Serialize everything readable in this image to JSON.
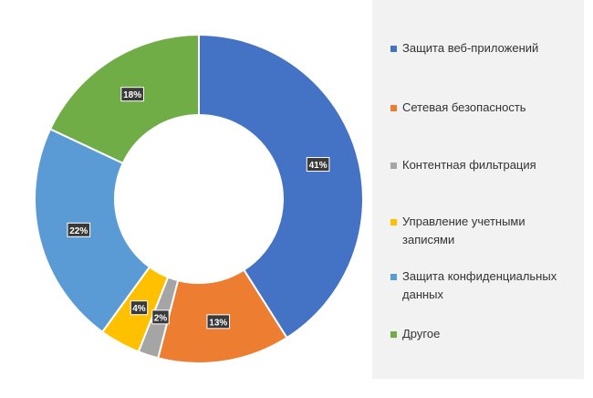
{
  "chart_data": {
    "type": "donut",
    "categories": [
      "Защита веб-приложений",
      "Сетевая безопасность",
      "Контентная фильтрация",
      "Управление учетными записями",
      "Защита конфиденциальных данных",
      "Другое"
    ],
    "values": [
      41,
      13,
      2,
      4,
      22,
      18
    ],
    "data_labels": [
      "41%",
      "13%",
      "2%",
      "4%",
      "22%",
      "18%"
    ],
    "unit": "%",
    "colors": [
      "#4472c4",
      "#ed7d31",
      "#a5a5a5",
      "#ffc000",
      "#5b9bd5",
      "#70ad47"
    ],
    "legend_position": "right"
  }
}
